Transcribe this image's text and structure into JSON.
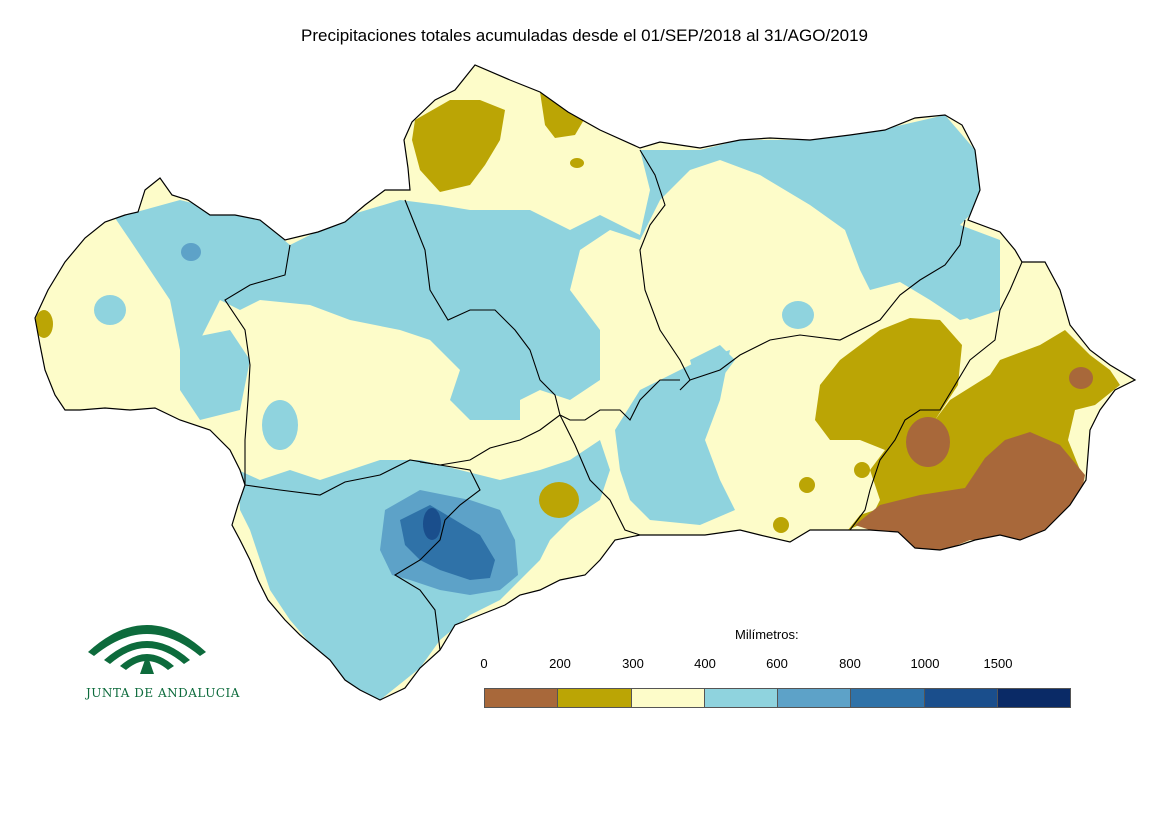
{
  "title": "Precipitaciones totales acumuladas desde el 01/SEP/2018 al 31/AGO/2019",
  "logo": {
    "text": "JUNTA DE ANDALUCIA",
    "color": "#0d6b3c"
  },
  "legend": {
    "title": "Milímetros:",
    "labels": [
      "0",
      "200",
      "300",
      "400",
      "600",
      "800",
      "1000",
      "1500"
    ],
    "colors": [
      "#a8683a",
      "#bba505",
      "#fdfcc9",
      "#8fd3de",
      "#5da2c8",
      "#2f72a8",
      "#1a4e8c",
      "#0a2a66"
    ]
  },
  "map": {
    "region": "Andalucía",
    "outline_color": "#000000"
  }
}
